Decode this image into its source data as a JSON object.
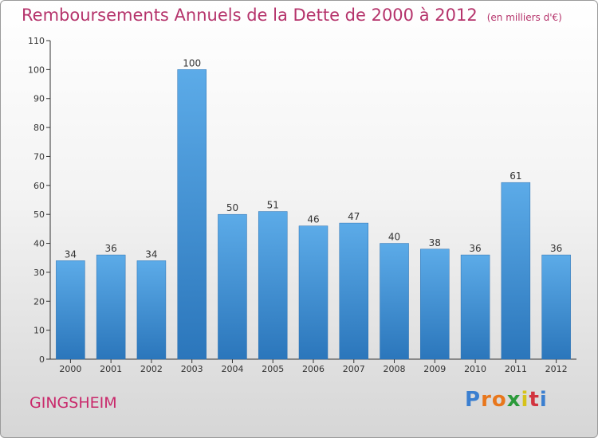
{
  "header": {
    "title": "Remboursements Annuels de la Dette de 2000 à 2012",
    "subtitle": "(en milliers d'€)"
  },
  "footer": {
    "city": "GINGSHEIM",
    "logo": "Proxiti"
  },
  "colors": {
    "bar_light": "#5aa9e6",
    "bar_dark": "#2d78bd",
    "title": "#b5336b"
  },
  "chart_data": {
    "type": "bar",
    "title": "Remboursements Annuels de la Dette de 2000 à 2012",
    "xlabel": "",
    "ylabel": "",
    "categories": [
      "2000",
      "2001",
      "2002",
      "2003",
      "2004",
      "2005",
      "2006",
      "2007",
      "2008",
      "2009",
      "2010",
      "2011",
      "2012"
    ],
    "values": [
      34,
      36,
      34,
      100,
      50,
      51,
      46,
      47,
      40,
      38,
      36,
      61,
      36
    ],
    "ylim": [
      0,
      110
    ],
    "yticks": [
      0,
      10,
      20,
      30,
      40,
      50,
      60,
      70,
      80,
      90,
      100,
      110
    ],
    "grid": false
  }
}
